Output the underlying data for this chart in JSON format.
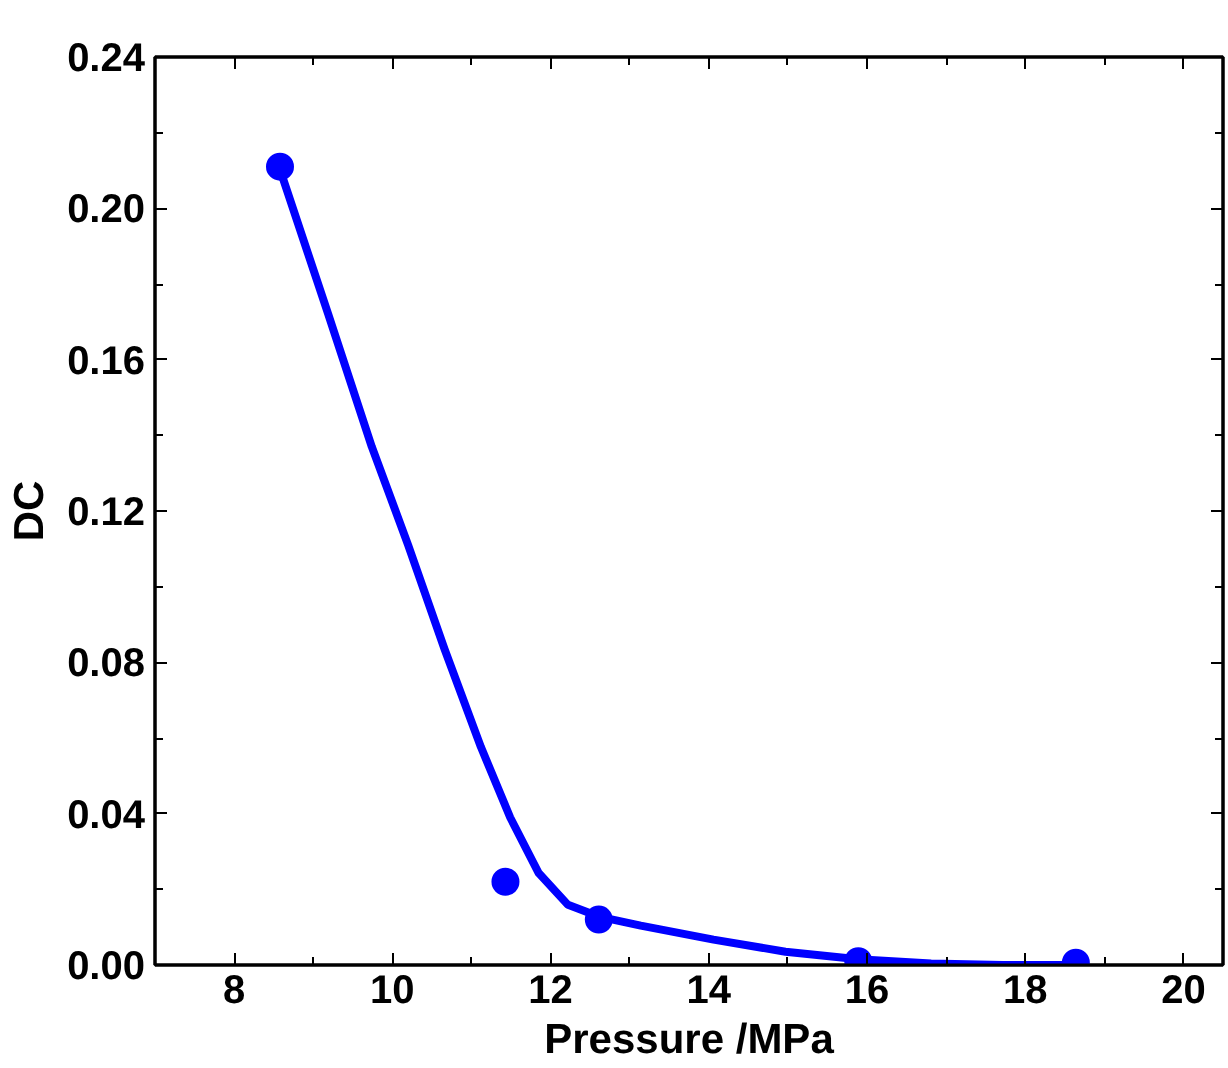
{
  "chart_data": {
    "type": "scatter",
    "xlabel": "Pressure /MPa",
    "ylabel": "DC",
    "xlim": [
      7,
      20.5
    ],
    "xticks": [
      8,
      10,
      12,
      14,
      16,
      18,
      20
    ],
    "ylim": [
      0,
      0.24
    ],
    "yticks": [
      {
        "value": 0,
        "label": "0.00"
      },
      {
        "value": 0.04,
        "label": "0.04"
      },
      {
        "value": 0.08,
        "label": "0.08"
      },
      {
        "value": 0.12,
        "label": "0.12"
      },
      {
        "value": 0.16,
        "label": "0.16"
      },
      {
        "value": 0.2,
        "label": "0.20"
      },
      {
        "value": 0.24,
        "label": "0.24"
      }
    ],
    "grid": false,
    "series": [
      {
        "marker": "circle",
        "color": "#0000ff",
        "x": [
          8.58,
          11.43,
          12.61,
          15.89,
          18.64
        ],
        "values": [
          0.211,
          0.022,
          0.012,
          0.001,
          0.0006
        ]
      },
      {
        "type": "line",
        "marker": "none",
        "color": "#0000ff",
        "line_style": "solid",
        "x": [
          8.6,
          9.19,
          9.74,
          10.2,
          10.66,
          11.12,
          11.49,
          11.85,
          12.22,
          12.61,
          13.14,
          14.06,
          14.97,
          15.89,
          16.81,
          17.72,
          18.64
        ],
        "values": [
          0.209,
          0.172,
          0.137,
          0.111,
          0.0835,
          0.0576,
          0.039,
          0.0243,
          0.0159,
          0.0128,
          0.0104,
          0.0067,
          0.0035,
          0.0015,
          0.0004,
          0.0,
          0.0
        ]
      }
    ]
  }
}
